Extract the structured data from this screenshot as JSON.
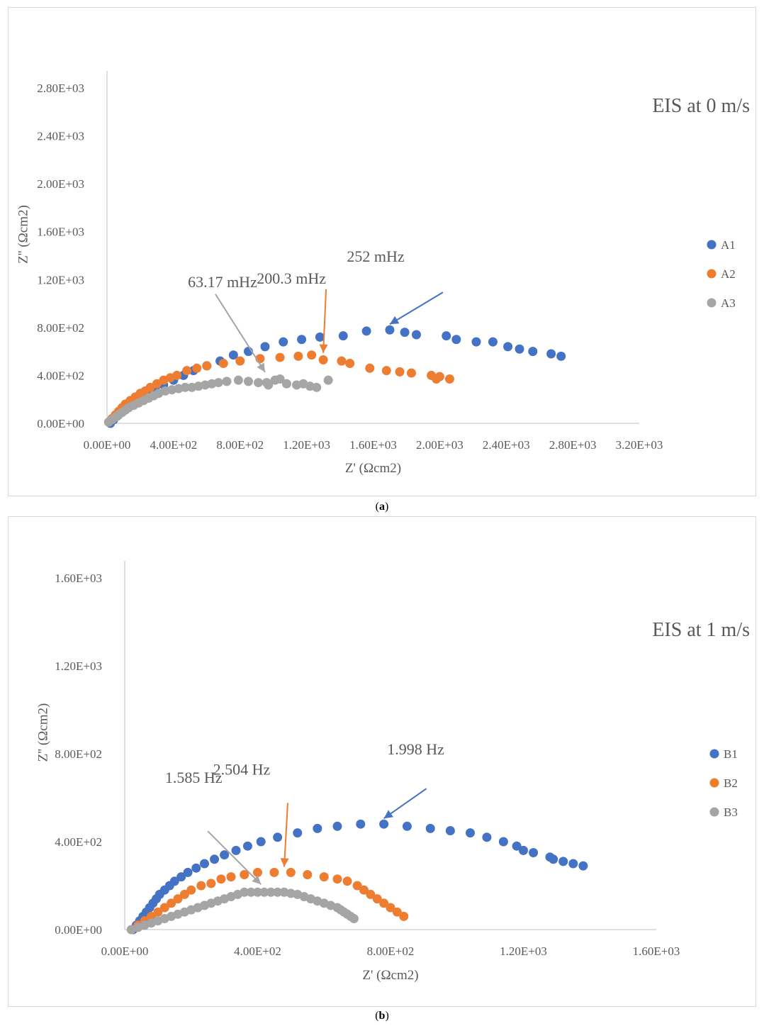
{
  "captions": {
    "a": "a",
    "b": "b"
  },
  "chart_data": [
    {
      "id": "a",
      "type": "scatter",
      "title": "EIS at 0 m/s",
      "xlabel": "Z' (Ωcm2)",
      "ylabel": "Z'' (Ωcm2)",
      "xlim": [
        0,
        3200
      ],
      "ylim": [
        0,
        2800
      ],
      "xticks": [
        0,
        400,
        800,
        1200,
        1600,
        2000,
        2400,
        2800,
        3200
      ],
      "xtick_labels": [
        "0.00E+00",
        "4.00E+02",
        "8.00E+02",
        "1.20E+03",
        "1.60E+03",
        "2.00E+03",
        "2.40E+03",
        "2.80E+03",
        "3.20E+03"
      ],
      "yticks": [
        0,
        400,
        800,
        1200,
        1600,
        2000,
        2400,
        2800
      ],
      "ytick_labels": [
        "0.00E+00",
        "4.00E+02",
        "8.00E+02",
        "1.20E+03",
        "1.60E+03",
        "2.00E+03",
        "2.40E+03",
        "2.80E+03"
      ],
      "legend_position": "right",
      "series": [
        {
          "name": "A1",
          "color": "#4472c4",
          "x": [
            20,
            40,
            60,
            80,
            110,
            140,
            170,
            200,
            240,
            290,
            340,
            400,
            460,
            520,
            600,
            680,
            760,
            850,
            950,
            1060,
            1170,
            1280,
            1420,
            1560,
            1700,
            1790,
            1860,
            2040,
            2100,
            2220,
            2320,
            2410,
            2480,
            2560,
            2670,
            2730
          ],
          "y": [
            0,
            30,
            60,
            90,
            120,
            150,
            180,
            210,
            250,
            290,
            320,
            360,
            400,
            440,
            480,
            520,
            570,
            600,
            640,
            680,
            700,
            720,
            730,
            770,
            780,
            760,
            740,
            730,
            700,
            680,
            680,
            640,
            620,
            600,
            580,
            560
          ]
        },
        {
          "name": "A2",
          "color": "#ed7d31",
          "x": [
            10,
            30,
            50,
            70,
            90,
            110,
            140,
            170,
            200,
            230,
            260,
            300,
            340,
            380,
            420,
            480,
            540,
            600,
            700,
            800,
            920,
            1040,
            1150,
            1230,
            1300,
            1410,
            1460,
            1580,
            1680,
            1760,
            1830,
            1950,
            1980,
            2000,
            2060
          ],
          "y": [
            10,
            40,
            70,
            100,
            130,
            160,
            190,
            220,
            250,
            270,
            300,
            330,
            360,
            380,
            400,
            440,
            460,
            480,
            500,
            520,
            540,
            550,
            560,
            570,
            530,
            520,
            500,
            460,
            440,
            430,
            420,
            400,
            370,
            390,
            370
          ]
        },
        {
          "name": "A3",
          "color": "#a5a5a5",
          "x": [
            10,
            30,
            50,
            70,
            90,
            110,
            130,
            160,
            190,
            220,
            250,
            280,
            310,
            350,
            390,
            430,
            470,
            510,
            550,
            590,
            630,
            670,
            720,
            790,
            850,
            910,
            960,
            970,
            1010,
            1040,
            1080,
            1140,
            1180,
            1220,
            1260,
            1330
          ],
          "y": [
            10,
            30,
            50,
            70,
            90,
            110,
            130,
            150,
            170,
            190,
            210,
            230,
            250,
            270,
            280,
            290,
            300,
            300,
            310,
            320,
            330,
            340,
            350,
            360,
            350,
            340,
            340,
            320,
            360,
            370,
            330,
            320,
            330,
            310,
            300,
            360
          ]
        }
      ],
      "annotations": [
        {
          "text": "63.17 mHz",
          "series": "A3",
          "x": 950,
          "y": 380
        },
        {
          "text": "200.3 mHz",
          "series": "A2",
          "x": 1300,
          "y": 540
        },
        {
          "text": "252 mHz",
          "series": "A1",
          "x": 1700,
          "y": 780
        }
      ]
    },
    {
      "id": "b",
      "type": "scatter",
      "title": "EIS at 1 m/s",
      "xlabel": "Z' (Ωcm2)",
      "ylabel": "Z'' (Ωcm2)",
      "xlim": [
        0,
        1600
      ],
      "ylim": [
        0,
        1600
      ],
      "xticks": [
        0,
        400,
        800,
        1200,
        1600
      ],
      "xtick_labels": [
        "0.00E+00",
        "4.00E+02",
        "8.00E+02",
        "1.20E+03",
        "1.60E+03"
      ],
      "yticks": [
        0,
        400,
        800,
        1200,
        1600
      ],
      "ytick_labels": [
        "0.00E+00",
        "4.00E+02",
        "8.00E+02",
        "1.20E+03",
        "1.60E+03"
      ],
      "legend_position": "right",
      "series": [
        {
          "name": "B1",
          "color": "#4472c4",
          "x": [
            25,
            35,
            45,
            55,
            65,
            75,
            85,
            95,
            105,
            120,
            135,
            150,
            170,
            190,
            215,
            240,
            270,
            300,
            335,
            370,
            410,
            460,
            520,
            580,
            640,
            710,
            780,
            850,
            920,
            980,
            1040,
            1090,
            1140,
            1180,
            1200,
            1230,
            1280,
            1290,
            1320,
            1350,
            1380
          ],
          "y": [
            0,
            20,
            40,
            60,
            80,
            100,
            120,
            140,
            160,
            180,
            200,
            220,
            240,
            260,
            280,
            300,
            320,
            340,
            360,
            380,
            400,
            420,
            440,
            460,
            470,
            480,
            480,
            470,
            460,
            450,
            440,
            420,
            400,
            380,
            360,
            350,
            330,
            320,
            310,
            300,
            290
          ]
        },
        {
          "name": "B2",
          "color": "#ed7d31",
          "x": [
            20,
            40,
            60,
            80,
            100,
            120,
            140,
            160,
            180,
            200,
            230,
            260,
            290,
            320,
            360,
            400,
            450,
            500,
            550,
            600,
            640,
            670,
            700,
            720,
            740,
            760,
            780,
            800,
            820,
            840
          ],
          "y": [
            0,
            20,
            40,
            60,
            80,
            100,
            120,
            140,
            160,
            180,
            200,
            210,
            230,
            240,
            250,
            260,
            260,
            260,
            250,
            240,
            230,
            220,
            200,
            180,
            160,
            140,
            120,
            100,
            80,
            60
          ]
        },
        {
          "name": "B3",
          "color": "#a5a5a5",
          "x": [
            20,
            40,
            60,
            80,
            100,
            120,
            140,
            160,
            180,
            200,
            220,
            240,
            260,
            280,
            300,
            320,
            340,
            360,
            380,
            400,
            420,
            440,
            460,
            480,
            500,
            520,
            540,
            560,
            580,
            600,
            620,
            640,
            650,
            660,
            670,
            680,
            690
          ],
          "y": [
            0,
            10,
            20,
            30,
            40,
            50,
            60,
            70,
            80,
            90,
            100,
            110,
            120,
            130,
            140,
            150,
            160,
            170,
            170,
            170,
            170,
            170,
            170,
            170,
            165,
            160,
            150,
            140,
            130,
            120,
            110,
            100,
            90,
            80,
            70,
            60,
            50
          ]
        }
      ],
      "annotations": [
        {
          "text": "1.585 Hz",
          "series": "B3",
          "x": 410,
          "y": 180
        },
        {
          "text": "2.504 Hz",
          "series": "B2",
          "x": 480,
          "y": 260
        },
        {
          "text": "1.998 Hz",
          "series": "B1",
          "x": 780,
          "y": 480
        }
      ]
    }
  ]
}
